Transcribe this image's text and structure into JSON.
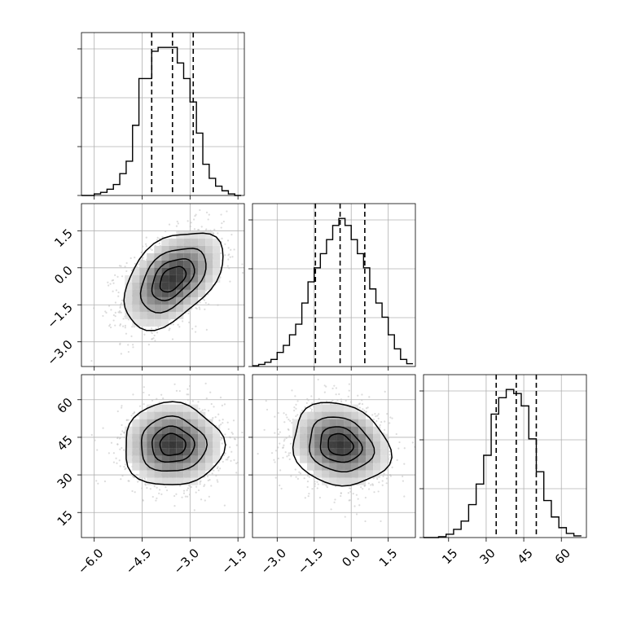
{
  "chart_data": {
    "type": "corner",
    "parameters": [
      {
        "name": "",
        "range": [
          -6.4,
          -1.3
        ],
        "ticks": [
          -6.0,
          -4.5,
          -3.0,
          -1.5
        ],
        "tick_labels": [
          "−6.0",
          "−4.5",
          "−3.0",
          "−1.5"
        ],
        "quantiles": [
          -4.2,
          -3.55,
          -2.9
        ],
        "histogram": {
          "bin_edges": [
            -6.4,
            -6.2,
            -6.0,
            -5.8,
            -5.6,
            -5.4,
            -5.2,
            -5.0,
            -4.8,
            -4.6,
            -4.4,
            -4.2,
            -4.0,
            -3.8,
            -3.6,
            -3.4,
            -3.2,
            -3.0,
            -2.8,
            -2.6,
            -2.4,
            -2.2,
            -2.0,
            -1.8,
            -1.6,
            -1.4
          ],
          "counts": [
            0,
            0,
            2,
            4,
            8,
            14,
            28,
            44,
            90,
            150,
            150,
            185,
            190,
            190,
            190,
            170,
            150,
            120,
            80,
            40,
            22,
            12,
            6,
            2,
            0
          ]
        }
      },
      {
        "name": "",
        "range": [
          -4.0,
          2.6
        ],
        "ticks": [
          -3.0,
          -1.5,
          0.0,
          1.5
        ],
        "tick_labels": [
          "−3.0",
          "−1.5",
          "0.0",
          "1.5"
        ],
        "quantiles": [
          -1.45,
          -0.45,
          0.55
        ],
        "histogram": {
          "bin_edges": [
            -4.0,
            -3.75,
            -3.5,
            -3.25,
            -3.0,
            -2.75,
            -2.5,
            -2.25,
            -2.0,
            -1.75,
            -1.5,
            -1.25,
            -1.0,
            -0.75,
            -0.5,
            -0.25,
            0.0,
            0.25,
            0.5,
            0.75,
            1.0,
            1.25,
            1.5,
            1.75,
            2.0,
            2.25,
            2.5
          ],
          "counts": [
            1,
            3,
            6,
            10,
            20,
            30,
            45,
            60,
            90,
            120,
            140,
            160,
            180,
            200,
            210,
            200,
            180,
            160,
            140,
            110,
            90,
            70,
            45,
            25,
            10,
            4
          ]
        }
      },
      {
        "name": "",
        "range": [
          5,
          70
        ],
        "ticks": [
          15,
          30,
          45,
          60
        ],
        "tick_labels": [
          "15",
          "30",
          "45",
          "60"
        ],
        "quantiles": [
          34,
          42,
          50
        ],
        "histogram": {
          "bin_edges": [
            5,
            8,
            11,
            14,
            17,
            20,
            23,
            26,
            29,
            32,
            35,
            38,
            41,
            44,
            47,
            50,
            53,
            56,
            59,
            62,
            65,
            68
          ],
          "counts": [
            0,
            0,
            1,
            4,
            10,
            20,
            40,
            65,
            100,
            150,
            170,
            180,
            175,
            160,
            120,
            80,
            45,
            25,
            12,
            5,
            2
          ]
        }
      }
    ],
    "pairs": [
      {
        "x": 0,
        "y": 1,
        "center": [
          -3.55,
          -0.45
        ],
        "spread": [
          0.75,
          0.95
        ],
        "correlation": 0.45
      },
      {
        "x": 0,
        "y": 2,
        "center": [
          -3.55,
          42
        ],
        "spread": [
          0.75,
          8
        ],
        "correlation": 0.0
      },
      {
        "x": 1,
        "y": 2,
        "center": [
          -0.45,
          42
        ],
        "spread": [
          0.95,
          8
        ],
        "correlation": -0.15
      }
    ],
    "contour_levels_sigma": [
      0.5,
      1.0,
      1.5,
      2.0
    ],
    "grid": true,
    "colors": {
      "hist_line": "#000000",
      "quantile_line": "#000000",
      "scatter": "#bfbfbf",
      "density": "#000000"
    }
  }
}
